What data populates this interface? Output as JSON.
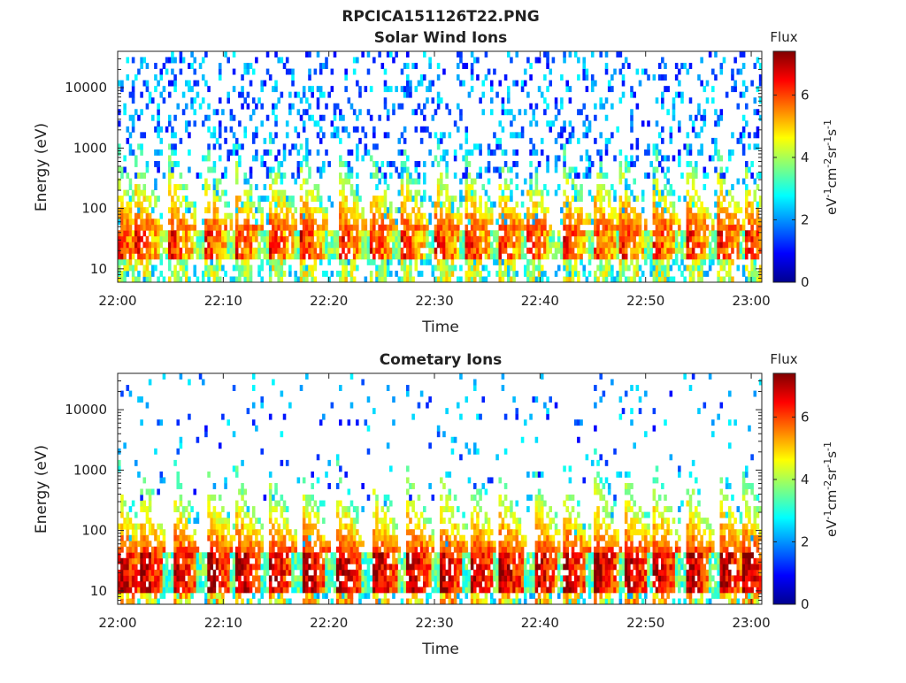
{
  "figure_title": "RPCICA151126T22.PNG",
  "chart_data": [
    {
      "type": "heatmap",
      "title": "Solar Wind Ions",
      "xlabel": "Time",
      "ylabel": "Energy (eV)",
      "x_ticks": [
        "22:00",
        "22:10",
        "22:20",
        "22:30",
        "22:40",
        "22:50",
        "23:00"
      ],
      "x_range": [
        "22:00",
        "23:01"
      ],
      "y_scale": "log",
      "y_ticks": [
        10,
        100,
        1000,
        10000
      ],
      "y_tick_labels": [
        "10",
        "100",
        "1000",
        "10000"
      ],
      "y_range": [
        6,
        40000
      ],
      "colorbar": {
        "title": "Flux",
        "label": "eV-1cm-2sr-1s-1",
        "ticks": [
          0,
          2,
          4,
          6
        ],
        "range": [
          0,
          7.4
        ],
        "colormap": "jet"
      },
      "burst_times_min": [
        0.3,
        2.1,
        5.3,
        8.6,
        11.5,
        14.8,
        17.7,
        21.4,
        24.3,
        27.3,
        30.5,
        33.4,
        36.4,
        39.0,
        42.5,
        45.4,
        48.0,
        51.0,
        54.2,
        57.2,
        59.9
      ],
      "band_energy_ev": [
        15,
        40
      ],
      "band_peak_flux": 6.2,
      "background_flux": 1.5
    },
    {
      "type": "heatmap",
      "title": "Cometary Ions",
      "xlabel": "Time",
      "ylabel": "Energy (eV)",
      "x_ticks": [
        "22:00",
        "22:10",
        "22:20",
        "22:30",
        "22:40",
        "22:50",
        "23:00"
      ],
      "x_range": [
        "22:00",
        "23:01"
      ],
      "y_scale": "log",
      "y_ticks": [
        10,
        100,
        1000,
        10000
      ],
      "y_tick_labels": [
        "10",
        "100",
        "1000",
        "10000"
      ],
      "y_range": [
        6,
        40000
      ],
      "colorbar": {
        "title": "Flux",
        "label": "eV-1cm-2sr-1s-1",
        "ticks": [
          0,
          2,
          4,
          6
        ],
        "range": [
          0,
          7.4
        ],
        "colormap": "jet"
      },
      "burst_times_min": [
        0.3,
        2.4,
        5.6,
        8.9,
        11.6,
        14.7,
        17.9,
        21.2,
        24.6,
        27.8,
        30.9,
        33.7,
        36.6,
        39.8,
        42.6,
        45.6,
        48.4,
        51.1,
        54.2,
        57.3,
        59.6
      ],
      "band_energy_ev": [
        10,
        45
      ],
      "band_peak_flux": 7.0,
      "background_flux": 1.2
    }
  ]
}
